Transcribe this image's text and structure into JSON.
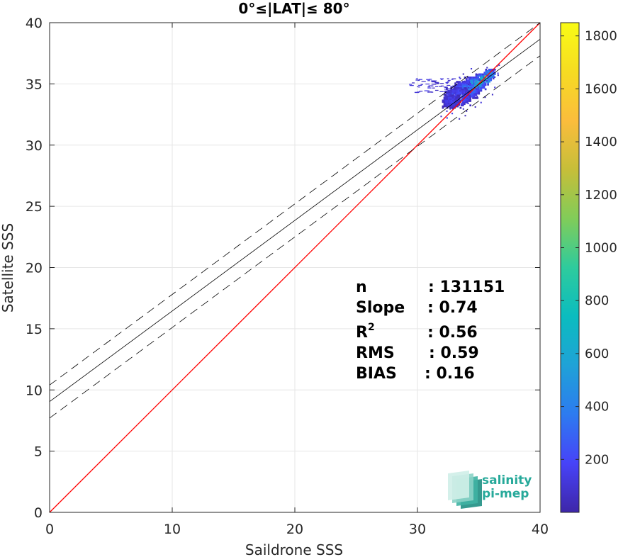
{
  "chart_data": {
    "type": "heatmap",
    "title": "0°≤|LAT|≤ 80°",
    "xlabel": "Saildrone SSS",
    "ylabel": "Satellite SSS",
    "xlim": [
      0,
      40
    ],
    "ylim": [
      0,
      40
    ],
    "xticks": [
      "0",
      "10",
      "20",
      "30",
      "40"
    ],
    "yticks": [
      "0",
      "5",
      "10",
      "15",
      "20",
      "25",
      "30",
      "35",
      "40"
    ],
    "grid": true,
    "identity_line": {
      "color": "#ff0000",
      "slope": 1,
      "intercept": 0
    },
    "fit_line": {
      "slope": 0.74,
      "intercept": 9.05,
      "band": 1.35,
      "color": "#000000"
    },
    "density_core": [
      {
        "x": 32.8,
        "y": 33.6,
        "w": 1.6,
        "h": 1.2,
        "level": 0.08
      },
      {
        "x": 33.3,
        "y": 34.0,
        "w": 2.2,
        "h": 1.6,
        "level": 0.12
      },
      {
        "x": 34.0,
        "y": 34.5,
        "w": 2.2,
        "h": 1.4,
        "level": 0.18
      },
      {
        "x": 34.7,
        "y": 35.0,
        "w": 1.8,
        "h": 1.2,
        "level": 0.26
      },
      {
        "x": 35.3,
        "y": 35.4,
        "w": 1.4,
        "h": 1.0,
        "level": 0.35
      },
      {
        "x": 35.9,
        "y": 35.8,
        "w": 1.0,
        "h": 0.8,
        "level": 0.3
      },
      {
        "x": 34.8,
        "y": 34.9,
        "w": 0.4,
        "h": 0.4,
        "level": 0.62
      },
      {
        "x": 35.1,
        "y": 35.1,
        "w": 0.3,
        "h": 0.3,
        "level": 0.8
      },
      {
        "x": 34.5,
        "y": 34.6,
        "w": 0.3,
        "h": 0.3,
        "level": 0.5
      },
      {
        "x": 35.5,
        "y": 35.6,
        "w": 0.3,
        "h": 0.3,
        "level": 0.45
      },
      {
        "x": 34.2,
        "y": 34.4,
        "w": 0.3,
        "h": 0.3,
        "level": 0.4
      }
    ],
    "colorbar": {
      "min": 0,
      "max": 1850,
      "ticks": [
        "200",
        "400",
        "600",
        "800",
        "1000",
        "1200",
        "1400",
        "1600",
        "1800"
      ],
      "colormap": [
        "#3e26a8",
        "#4743f8",
        "#2d7bf0",
        "#1fa2d7",
        "#0bbcbf",
        "#2ecb9d",
        "#81cc59",
        "#c6be39",
        "#fbbd3c",
        "#f6dc22",
        "#f9fb15"
      ]
    }
  },
  "stats": {
    "rows": [
      {
        "label": "n",
        "value": ": 131151"
      },
      {
        "label": "Slope",
        "value": ": 0.74"
      },
      {
        "label": "R",
        "sup": "2",
        "value": ": 0.56"
      },
      {
        "label": "RMS",
        "value": ": 0.59"
      },
      {
        "label": "BIAS",
        "value": ": 0.16"
      }
    ]
  },
  "logo": {
    "line1": "salinity",
    "line2": "pi-mep",
    "colors": [
      "#1f8f83",
      "#3fb3a3",
      "#8bd3c7",
      "#cfeee8"
    ]
  }
}
